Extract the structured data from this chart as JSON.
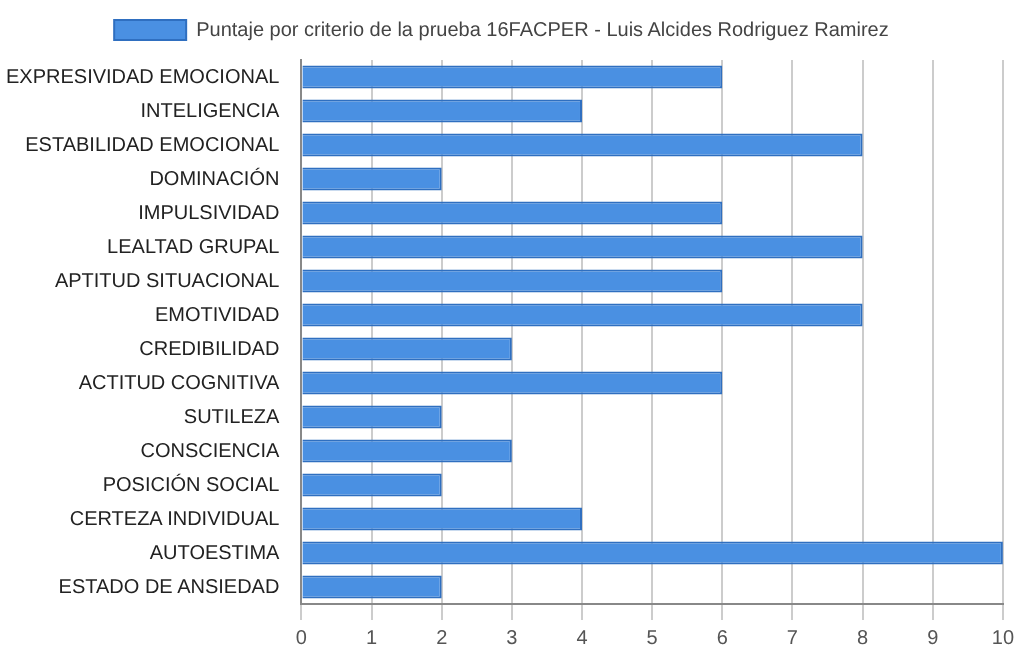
{
  "chart_data": {
    "type": "bar",
    "orientation": "horizontal",
    "categories": [
      "EXPRESIVIDAD EMOCIONAL",
      "INTELIGENCIA",
      "ESTABILIDAD EMOCIONAL",
      "DOMINACIÓN",
      "IMPULSIVIDAD",
      "LEALTAD GRUPAL",
      "APTITUD SITUACIONAL",
      "EMOTIVIDAD",
      "CREDIBILIDAD",
      "ACTITUD COGNITIVA",
      "SUTILEZA",
      "CONSCIENCIA",
      "POSICIÓN SOCIAL",
      "CERTEZA INDIVIDUAL",
      "AUTOESTIMA",
      "ESTADO DE ANSIEDAD"
    ],
    "series": [
      {
        "name": "Puntaje por criterio de la prueba 16FACPER - Luis Alcides Rodriguez Ramirez",
        "color": "#4a90e2",
        "values": [
          6,
          4,
          8,
          2,
          6,
          8,
          6,
          8,
          3,
          6,
          2,
          3,
          2,
          4,
          10,
          2
        ]
      }
    ],
    "xlim": [
      0,
      10
    ],
    "xticks": [
      0,
      1,
      2,
      3,
      4,
      5,
      6,
      7,
      8,
      9,
      10
    ],
    "grid": "x",
    "legend": "top"
  }
}
